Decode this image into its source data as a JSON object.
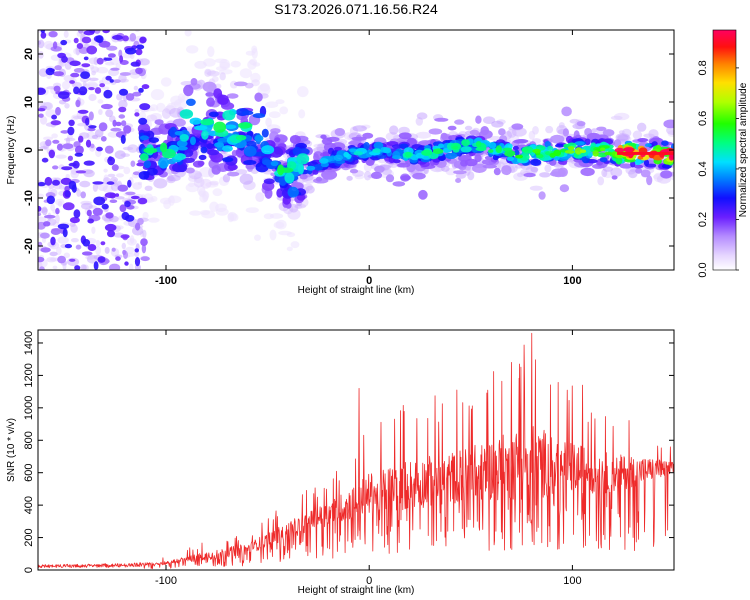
{
  "chart_data": [
    {
      "type": "heatmap",
      "title": "S173.2026.071.16.56.R24",
      "xlabel": "Height of straight line (km)",
      "ylabel": "Frequency (Hz)",
      "xlim": [
        -163,
        150
      ],
      "ylim": [
        -25,
        25
      ],
      "xticks": [
        -100,
        0,
        100
      ],
      "xtick_labels": [
        "-100",
        "0",
        "100"
      ],
      "yticks": [
        -20,
        -10,
        0,
        10,
        20
      ],
      "ytick_labels": [
        "-20",
        "-10",
        "0",
        "10",
        "20"
      ],
      "colorbar": {
        "label": "Normalized spectral amplitude",
        "range": [
          0,
          0.95
        ],
        "ticks": [
          0,
          0.2,
          0.4,
          0.6,
          0.8
        ],
        "tick_labels": [
          "0.0",
          "0.2",
          "0.4",
          "0.6",
          "0.8"
        ],
        "colormap": "rainbow-white-to-red"
      },
      "ridge_centerline": [
        {
          "x": -110,
          "y": -1
        },
        {
          "x": -85,
          "y": 2
        },
        {
          "x": -60,
          "y": 1
        },
        {
          "x": -40,
          "y": -5
        },
        {
          "x": -20,
          "y": -2
        },
        {
          "x": 0,
          "y": 0
        },
        {
          "x": 25,
          "y": -1
        },
        {
          "x": 50,
          "y": 1
        },
        {
          "x": 75,
          "y": -1
        },
        {
          "x": 100,
          "y": 0
        },
        {
          "x": 125,
          "y": -0.5
        },
        {
          "x": 150,
          "y": -1
        }
      ],
      "peak_amplitude": 0.9,
      "peak_location_x": [
        122,
        150
      ]
    },
    {
      "type": "line",
      "color": "#ee2a2a",
      "xlabel": "Height of straight line (km)",
      "ylabel": "SNR (10 * v/v)",
      "xlim": [
        -163,
        150
      ],
      "ylim": [
        0,
        1480
      ],
      "xticks": [
        -100,
        0,
        100
      ],
      "xtick_labels": [
        "-100",
        "0",
        "100"
      ],
      "yticks": [
        0,
        200,
        400,
        600,
        800,
        1000,
        1200,
        1400
      ],
      "ytick_labels": [
        "0",
        "200",
        "400",
        "600",
        "800",
        "1000",
        "1200",
        "1400"
      ],
      "envelope": {
        "x": [
          -163,
          -120,
          -100,
          -80,
          -60,
          -45,
          -30,
          -15,
          0,
          20,
          40,
          60,
          80,
          100,
          120,
          140,
          150
        ],
        "mean": [
          25,
          30,
          40,
          80,
          120,
          200,
          280,
          350,
          430,
          480,
          520,
          560,
          600,
          580,
          560,
          600,
          610
        ],
        "peak": [
          35,
          45,
          80,
          180,
          240,
          380,
          500,
          650,
          900,
          1050,
          1100,
          1250,
          1460,
          1150,
          1000,
          850,
          760
        ]
      },
      "notable_peaks": [
        {
          "x": 80,
          "y": 1460
        },
        {
          "x": 70,
          "y": 1280
        },
        {
          "x": 74,
          "y": 1270
        },
        {
          "x": -5,
          "y": 1120
        },
        {
          "x": 105,
          "y": 1140
        }
      ]
    }
  ]
}
